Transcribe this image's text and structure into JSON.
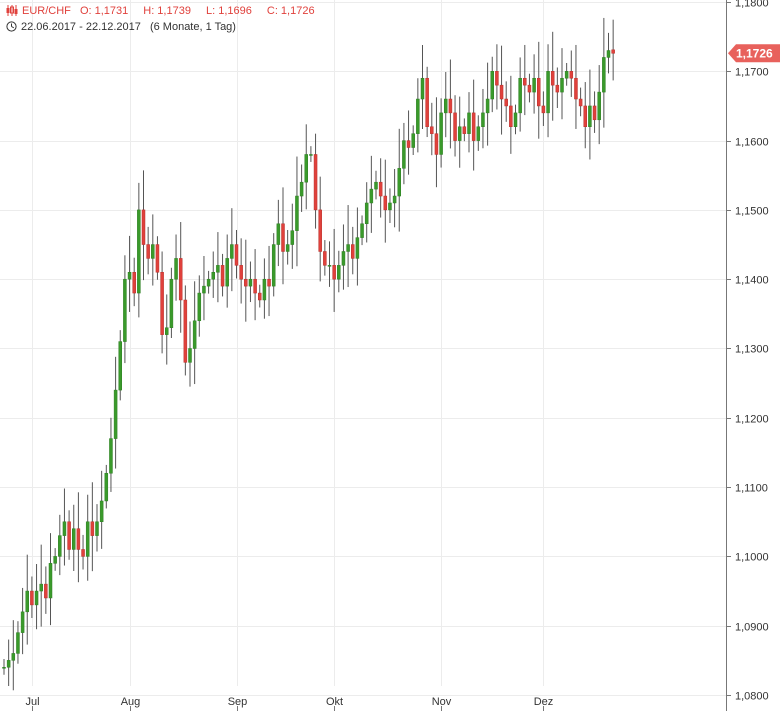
{
  "header": {
    "symbol": "EUR/CHF",
    "open_label": "O:",
    "open": "1,1731",
    "high_label": "H:",
    "high": "1,1739",
    "low_label": "L:",
    "low": "1,1696",
    "close_label": "C:",
    "close": "1,1726",
    "date_range": "22.06.2017 - 22.12.2017",
    "period": "(6 Monate, 1 Tag)"
  },
  "colors": {
    "up": "#3a9a2b",
    "down": "#e0413c",
    "wick": "#555555",
    "grid": "#ececec",
    "tag": "#e8615c"
  },
  "chart_data": {
    "type": "candlestick",
    "title": "",
    "xlabel": "",
    "ylabel": "",
    "ylim": [
      1.08,
      1.18
    ],
    "y_ticks": [
      "1,0800",
      "1,0900",
      "1,1000",
      "1,1100",
      "1,1200",
      "1,1300",
      "1,1400",
      "1,1500",
      "1,1600",
      "1,1700",
      "1,1800"
    ],
    "x_ticks": [
      {
        "label": "Jul",
        "index": 6
      },
      {
        "label": "Aug",
        "index": 27
      },
      {
        "label": "Sep",
        "index": 50
      },
      {
        "label": "Okt",
        "index": 71
      },
      {
        "label": "Nov",
        "index": 94
      },
      {
        "label": "Dez",
        "index": 116
      }
    ],
    "last_price": 1.1726,
    "last_price_label": "1,1726",
    "grid": true,
    "closes": [
      1.084,
      1.085,
      1.086,
      1.089,
      1.092,
      1.095,
      1.093,
      1.095,
      1.096,
      1.094,
      1.099,
      1.1,
      1.103,
      1.105,
      1.101,
      1.104,
      1.101,
      1.1,
      1.105,
      1.103,
      1.105,
      1.108,
      1.112,
      1.117,
      1.124,
      1.131,
      1.14,
      1.141,
      1.138,
      1.15,
      1.145,
      1.143,
      1.145,
      1.141,
      1.132,
      1.133,
      1.14,
      1.143,
      1.137,
      1.128,
      1.13,
      1.134,
      1.138,
      1.139,
      1.14,
      1.141,
      1.142,
      1.139,
      1.143,
      1.145,
      1.142,
      1.14,
      1.139,
      1.14,
      1.138,
      1.137,
      1.14,
      1.139,
      1.145,
      1.148,
      1.144,
      1.145,
      1.147,
      1.152,
      1.154,
      1.158,
      1.158,
      1.15,
      1.144,
      1.142,
      1.142,
      1.14,
      1.142,
      1.144,
      1.145,
      1.143,
      1.146,
      1.148,
      1.151,
      1.153,
      1.154,
      1.152,
      1.15,
      1.151,
      1.152,
      1.156,
      1.16,
      1.159,
      1.161,
      1.166,
      1.169,
      1.162,
      1.161,
      1.158,
      1.164,
      1.166,
      1.164,
      1.16,
      1.162,
      1.161,
      1.164,
      1.16,
      1.162,
      1.164,
      1.166,
      1.17,
      1.168,
      1.166,
      1.165,
      1.162,
      1.164,
      1.169,
      1.168,
      1.167,
      1.169,
      1.165,
      1.164,
      1.17,
      1.168,
      1.167,
      1.169,
      1.17,
      1.169,
      1.166,
      1.165,
      1.162,
      1.165,
      1.163,
      1.167,
      1.172,
      1.173,
      1.1726
    ],
    "opens": [
      1.084,
      1.084,
      1.085,
      1.086,
      1.089,
      1.092,
      1.095,
      1.093,
      1.095,
      1.096,
      1.094,
      1.099,
      1.1,
      1.103,
      1.105,
      1.101,
      1.104,
      1.101,
      1.1,
      1.105,
      1.103,
      1.105,
      1.108,
      1.112,
      1.117,
      1.124,
      1.131,
      1.14,
      1.141,
      1.138,
      1.15,
      1.145,
      1.143,
      1.145,
      1.141,
      1.132,
      1.133,
      1.14,
      1.143,
      1.137,
      1.128,
      1.13,
      1.134,
      1.138,
      1.139,
      1.14,
      1.141,
      1.142,
      1.139,
      1.143,
      1.145,
      1.142,
      1.14,
      1.139,
      1.14,
      1.138,
      1.137,
      1.14,
      1.139,
      1.145,
      1.148,
      1.144,
      1.145,
      1.147,
      1.152,
      1.154,
      1.158,
      1.158,
      1.15,
      1.144,
      1.142,
      1.142,
      1.14,
      1.142,
      1.144,
      1.145,
      1.143,
      1.146,
      1.148,
      1.151,
      1.153,
      1.154,
      1.152,
      1.15,
      1.151,
      1.152,
      1.156,
      1.16,
      1.159,
      1.161,
      1.166,
      1.169,
      1.162,
      1.161,
      1.158,
      1.164,
      1.166,
      1.164,
      1.16,
      1.162,
      1.161,
      1.164,
      1.16,
      1.162,
      1.164,
      1.166,
      1.17,
      1.168,
      1.166,
      1.165,
      1.162,
      1.164,
      1.169,
      1.168,
      1.167,
      1.169,
      1.165,
      1.164,
      1.17,
      1.168,
      1.167,
      1.169,
      1.17,
      1.169,
      1.166,
      1.165,
      1.162,
      1.165,
      1.163,
      1.167,
      1.172,
      1.1731
    ]
  }
}
